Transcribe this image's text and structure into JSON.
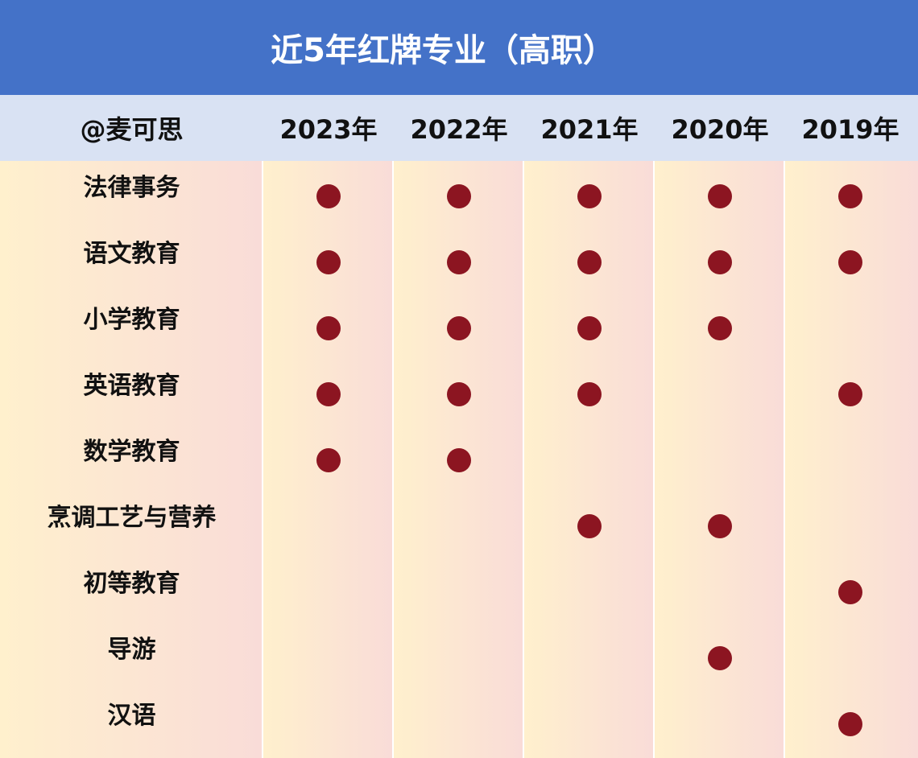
{
  "title": "近5年红牌专业（高职）",
  "header": {
    "corner": "@麦可思",
    "years": [
      "2023年",
      "2022年",
      "2021年",
      "2020年",
      "2019年"
    ]
  },
  "colors": {
    "title_bg": "#4472c8",
    "header_bg": "#d9e2f3",
    "dot": "#8c1521"
  },
  "rows": [
    {
      "name": "法律事务",
      "marks": [
        true,
        true,
        true,
        true,
        true
      ]
    },
    {
      "name": "语文教育",
      "marks": [
        true,
        true,
        true,
        true,
        true
      ]
    },
    {
      "name": "小学教育",
      "marks": [
        true,
        true,
        true,
        true,
        false
      ]
    },
    {
      "name": "英语教育",
      "marks": [
        true,
        true,
        true,
        false,
        true
      ]
    },
    {
      "name": "数学教育",
      "marks": [
        true,
        true,
        false,
        false,
        false
      ]
    },
    {
      "name": "烹调工艺与营养",
      "marks": [
        false,
        false,
        true,
        true,
        false
      ]
    },
    {
      "name": "初等教育",
      "marks": [
        false,
        false,
        false,
        false,
        true
      ]
    },
    {
      "name": "导游",
      "marks": [
        false,
        false,
        false,
        true,
        false
      ]
    },
    {
      "name": "汉语",
      "marks": [
        false,
        false,
        false,
        false,
        true
      ]
    }
  ]
}
